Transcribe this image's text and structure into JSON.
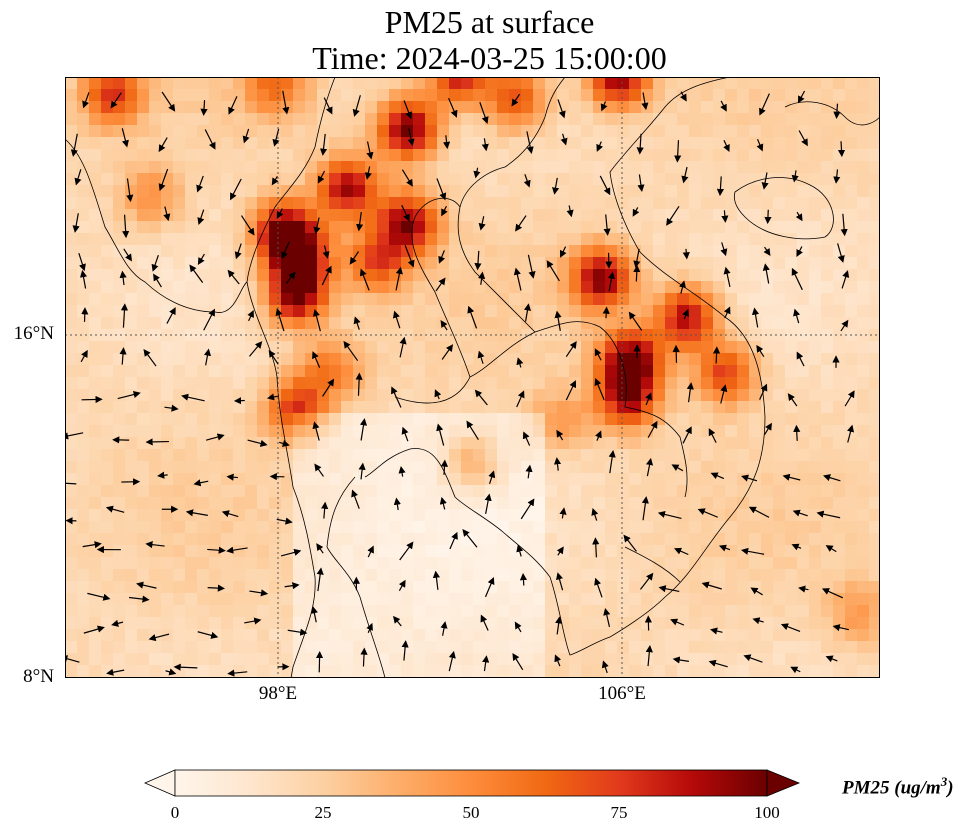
{
  "title": {
    "line1": "PM25 at surface",
    "line2": "Time: 2024-03-25 15:00:00"
  },
  "axes": {
    "lat_ticks": [
      "16°N",
      "8°N"
    ],
    "lon_ticks": [
      "98°E",
      "106°E"
    ]
  },
  "colorbar": {
    "label_main": "PM25 (ug/m",
    "label_sup": "3",
    "label_close": ")",
    "ticks": [
      "0",
      "25",
      "50",
      "75",
      "100"
    ],
    "min": 0,
    "max": 100,
    "colors": [
      "#fff5eb",
      "#fee6ce",
      "#fdd0a2",
      "#fdae6b",
      "#fd8d3c",
      "#f16913",
      "#d94801",
      "#a63603",
      "#7f2704"
    ],
    "colormap": "Oranges-Reds"
  },
  "map_extent": {
    "lon_min": 93,
    "lon_max": 112,
    "lat_min": 8,
    "lat_max": 22
  },
  "background_level": 20,
  "hotspots": [
    {
      "lon": 98.1,
      "lat": 18.4,
      "value": 100
    },
    {
      "lon": 98.5,
      "lat": 17.8,
      "value": 85
    },
    {
      "lon": 98.4,
      "lat": 16.9,
      "value": 95
    },
    {
      "lon": 99.6,
      "lat": 19.4,
      "value": 90
    },
    {
      "lon": 101.0,
      "lat": 20.8,
      "value": 100
    },
    {
      "lon": 101.0,
      "lat": 18.6,
      "value": 90
    },
    {
      "lon": 102.2,
      "lat": 22.1,
      "value": 90
    },
    {
      "lon": 103.5,
      "lat": 21.5,
      "value": 75
    },
    {
      "lon": 105.9,
      "lat": 22.0,
      "value": 95
    },
    {
      "lon": 105.5,
      "lat": 17.3,
      "value": 95
    },
    {
      "lon": 106.2,
      "lat": 15.4,
      "value": 100
    },
    {
      "lon": 106.1,
      "lat": 14.5,
      "value": 85
    },
    {
      "lon": 107.5,
      "lat": 16.4,
      "value": 90
    },
    {
      "lon": 108.4,
      "lat": 15.1,
      "value": 75
    },
    {
      "lon": 94.1,
      "lat": 21.6,
      "value": 75
    },
    {
      "lon": 97.9,
      "lat": 21.8,
      "value": 60
    },
    {
      "lon": 98.4,
      "lat": 14.3,
      "value": 75
    },
    {
      "lon": 99.2,
      "lat": 15.2,
      "value": 55
    },
    {
      "lon": 102.5,
      "lat": 13.0,
      "value": 50
    },
    {
      "lon": 104.5,
      "lat": 14.0,
      "value": 45
    },
    {
      "lon": 100.3,
      "lat": 17.7,
      "value": 70
    },
    {
      "lon": 95.0,
      "lat": 19.2,
      "value": 50
    },
    {
      "lon": 111.5,
      "lat": 9.5,
      "value": 45
    }
  ],
  "gridlines": {
    "lon": [
      98,
      106
    ],
    "lat": [
      16
    ]
  }
}
